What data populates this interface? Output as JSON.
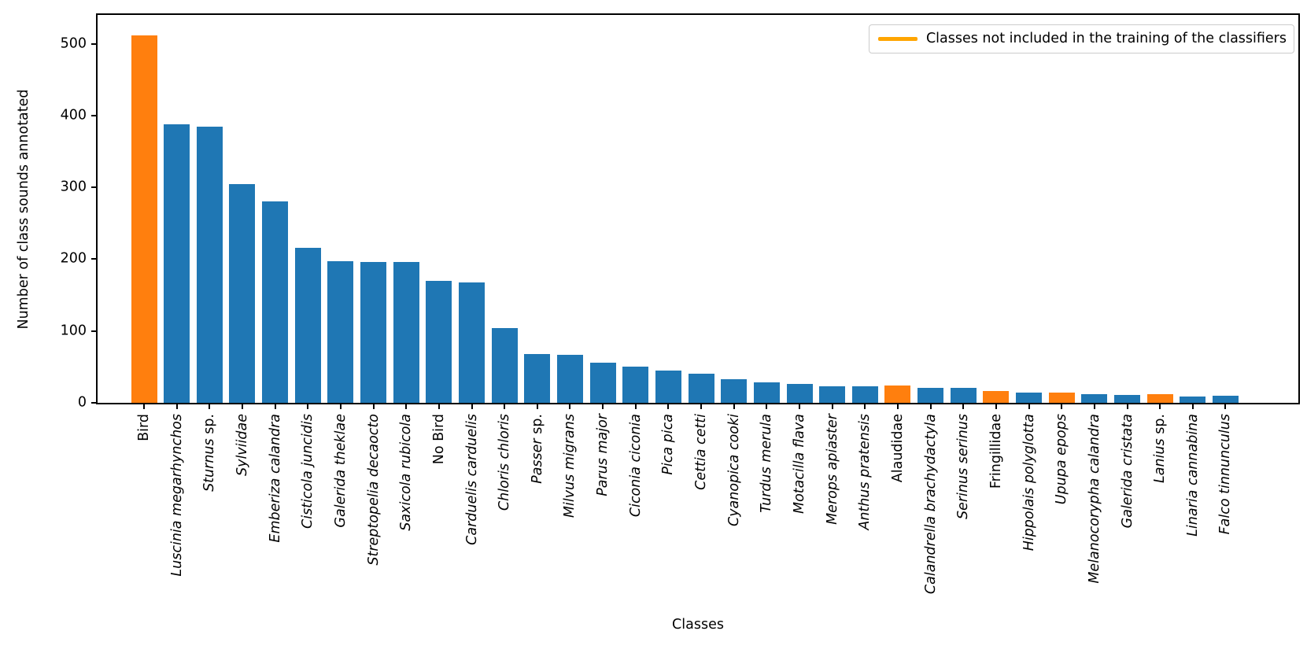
{
  "chart_data": {
    "type": "bar",
    "title": "",
    "xlabel": "Classes",
    "ylabel": "Number of class sounds annotated",
    "ylim": [
      0,
      540
    ],
    "yticks": [
      0,
      100,
      200,
      300,
      400,
      500
    ],
    "grid": false,
    "legend": {
      "position": "upper right",
      "entries": [
        {
          "label": "Classes not included in the training of the classifiers",
          "swatch_color": "#ffa500"
        }
      ]
    },
    "colors": {
      "included": "#1f77b4",
      "excluded": "#ff7f0e"
    },
    "categories": [
      {
        "label": "Bird",
        "value": 511,
        "excluded": true,
        "label_style": "normal"
      },
      {
        "label": "Luscinia megarhynchos",
        "value": 388,
        "excluded": false,
        "label_style": "italic"
      },
      {
        "label": "Sturnus sp.",
        "value": 385,
        "excluded": false,
        "label_style": "mixed"
      },
      {
        "label": "Sylviidae",
        "value": 305,
        "excluded": false,
        "label_style": "italic"
      },
      {
        "label": "Emberiza calandra",
        "value": 280,
        "excluded": false,
        "label_style": "italic"
      },
      {
        "label": "Cisticola juncidis",
        "value": 216,
        "excluded": false,
        "label_style": "italic"
      },
      {
        "label": "Galerida theklae",
        "value": 197,
        "excluded": false,
        "label_style": "italic"
      },
      {
        "label": "Streptopelia decaocto",
        "value": 196,
        "excluded": false,
        "label_style": "italic"
      },
      {
        "label": "Saxicola rubicola",
        "value": 196,
        "excluded": false,
        "label_style": "italic"
      },
      {
        "label": "No Bird",
        "value": 170,
        "excluded": false,
        "label_style": "normal"
      },
      {
        "label": "Carduelis carduelis",
        "value": 168,
        "excluded": false,
        "label_style": "italic"
      },
      {
        "label": "Chloris chloris",
        "value": 104,
        "excluded": false,
        "label_style": "italic"
      },
      {
        "label": "Passer sp.",
        "value": 68,
        "excluded": false,
        "label_style": "mixed"
      },
      {
        "label": "Milvus migrans",
        "value": 67,
        "excluded": false,
        "label_style": "italic"
      },
      {
        "label": "Parus major",
        "value": 56,
        "excluded": false,
        "label_style": "italic"
      },
      {
        "label": "Ciconia ciconia",
        "value": 50,
        "excluded": false,
        "label_style": "italic"
      },
      {
        "label": "Pica pica",
        "value": 45,
        "excluded": false,
        "label_style": "italic"
      },
      {
        "label": "Cettia cetti",
        "value": 40,
        "excluded": false,
        "label_style": "italic"
      },
      {
        "label": "Cyanopica cooki",
        "value": 33,
        "excluded": false,
        "label_style": "italic"
      },
      {
        "label": "Turdus merula",
        "value": 29,
        "excluded": false,
        "label_style": "italic"
      },
      {
        "label": "Motacilla flava",
        "value": 26,
        "excluded": false,
        "label_style": "italic"
      },
      {
        "label": "Merops apiaster",
        "value": 23,
        "excluded": false,
        "label_style": "italic"
      },
      {
        "label": "Anthus pratensis",
        "value": 23,
        "excluded": false,
        "label_style": "italic"
      },
      {
        "label": "Alaudidae",
        "value": 24,
        "excluded": true,
        "label_style": "normal"
      },
      {
        "label": "Calandrella brachydactyla",
        "value": 21,
        "excluded": false,
        "label_style": "italic"
      },
      {
        "label": "Serinus serinus",
        "value": 21,
        "excluded": false,
        "label_style": "italic"
      },
      {
        "label": "Fringillidae",
        "value": 16,
        "excluded": true,
        "label_style": "normal"
      },
      {
        "label": "Hippolais polyglotta",
        "value": 14,
        "excluded": false,
        "label_style": "italic"
      },
      {
        "label": "Upupa epops",
        "value": 14,
        "excluded": true,
        "label_style": "italic"
      },
      {
        "label": "Melanocorypha calandra",
        "value": 12,
        "excluded": false,
        "label_style": "italic"
      },
      {
        "label": "Galerida cristata",
        "value": 11,
        "excluded": false,
        "label_style": "italic"
      },
      {
        "label": "Lanius sp.",
        "value": 12,
        "excluded": true,
        "label_style": "mixed"
      },
      {
        "label": "Linaria cannabina",
        "value": 9,
        "excluded": false,
        "label_style": "italic"
      },
      {
        "label": "Falco tinnunculus",
        "value": 10,
        "excluded": false,
        "label_style": "italic"
      }
    ]
  }
}
